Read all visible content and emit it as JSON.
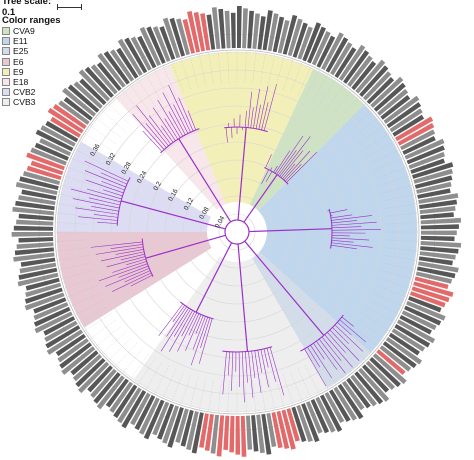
{
  "tree_scale": {
    "label": "Tree scale: 0.1"
  },
  "legend": {
    "title": "Color ranges",
    "items": [
      {
        "label": "CVA9",
        "color": "#cfe3c4"
      },
      {
        "label": "E11",
        "color": "#bfd6ec"
      },
      {
        "label": "E25",
        "color": "#d2dde9"
      },
      {
        "label": "E6",
        "color": "#e8c8d2"
      },
      {
        "label": "E9",
        "color": "#f2efb8"
      },
      {
        "label": "E18",
        "color": "#f7e6ea"
      },
      {
        "label": "CVB2",
        "color": "#dcdcf2"
      },
      {
        "label": "CVB3",
        "color": "#eeeeee"
      }
    ]
  },
  "ring_labels": [
    "0.04",
    "0.08",
    "0.12",
    "0.16",
    "0.2",
    "0.24",
    "0.28",
    "0.32",
    "0.36"
  ],
  "branch_color": "#9b30c9",
  "tip_highlight_color": "#e05a5a"
}
